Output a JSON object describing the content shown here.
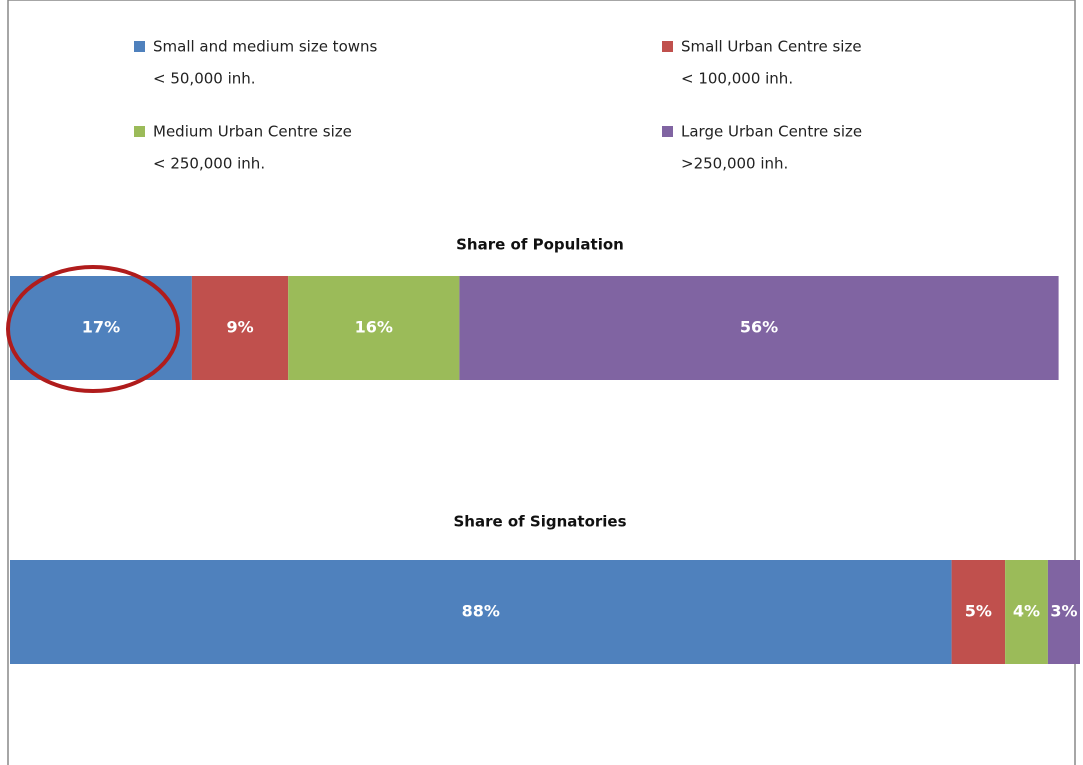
{
  "chart_data": {
    "type": "bar",
    "orientation": "horizontal",
    "stacked": true,
    "categories": [
      "Share of Population",
      "Share of Signatories"
    ],
    "xlim": [
      0,
      100
    ],
    "series": [
      {
        "name": "Small and medium size towns",
        "size_label": "< 50,000 inh.",
        "color": "#4f81bd",
        "values": [
          17,
          88
        ],
        "value_labels": [
          "17%",
          "88%"
        ]
      },
      {
        "name": "Small Urban Centre size",
        "size_label": "< 100,000 inh.",
        "color": "#c0504d",
        "values": [
          9,
          5
        ],
        "value_labels": [
          "9%",
          "5%"
        ]
      },
      {
        "name": "Medium Urban Centre size",
        "size_label": "< 250,000 inh.",
        "color": "#9bbb59",
        "values": [
          16,
          4
        ],
        "value_labels": [
          "16%",
          "4%"
        ]
      },
      {
        "name": "Large Urban Centre size",
        "size_label": ">250,000 inh.",
        "color": "#8064a2",
        "values": [
          56,
          3
        ],
        "value_labels": [
          "56%",
          "3%"
        ]
      }
    ]
  }
}
